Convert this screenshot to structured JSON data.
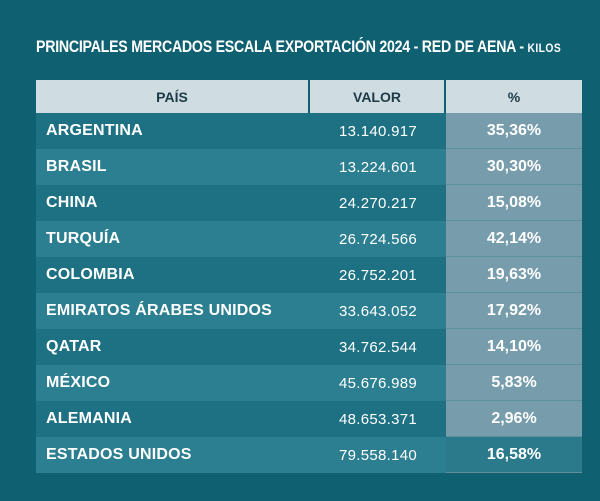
{
  "title": {
    "main": "PRINCIPALES MERCADOS ESCALA EXPORTACIÓN 2024 - RED DE AENA - ",
    "unit": "KILOS"
  },
  "table": {
    "headers": [
      "PAÍS",
      "VALOR",
      "%"
    ],
    "rows": [
      {
        "country": "ARGENTINA",
        "value": "13.140.917",
        "pct": "35,36%"
      },
      {
        "country": "BRASIL",
        "value": "13.224.601",
        "pct": "30,30%"
      },
      {
        "country": "CHINA",
        "value": "24.270.217",
        "pct": "15,08%"
      },
      {
        "country": "TURQUÍA",
        "value": "26.724.566",
        "pct": "42,14%"
      },
      {
        "country": "COLOMBIA",
        "value": "26.752.201",
        "pct": "19,63%"
      },
      {
        "country": "EMIRATOS ÁRABES UNIDOS",
        "value": "33.643.052",
        "pct": "17,92%"
      },
      {
        "country": "QATAR",
        "value": "34.762.544",
        "pct": "14,10%"
      },
      {
        "country": "MÉXICO",
        "value": "45.676.989",
        "pct": "5,83%"
      },
      {
        "country": "ALEMANIA",
        "value": "48.653.371",
        "pct": "2,96%"
      },
      {
        "country": "ESTADOS UNIDOS",
        "value": "79.558.140",
        "pct": "16,58%"
      }
    ]
  },
  "colors": {
    "background": "#0f6070",
    "header": "#cfdde3",
    "row_dark": "#1e7183",
    "row_light": "#2c7f91",
    "pct_highlight": "#779cab"
  }
}
